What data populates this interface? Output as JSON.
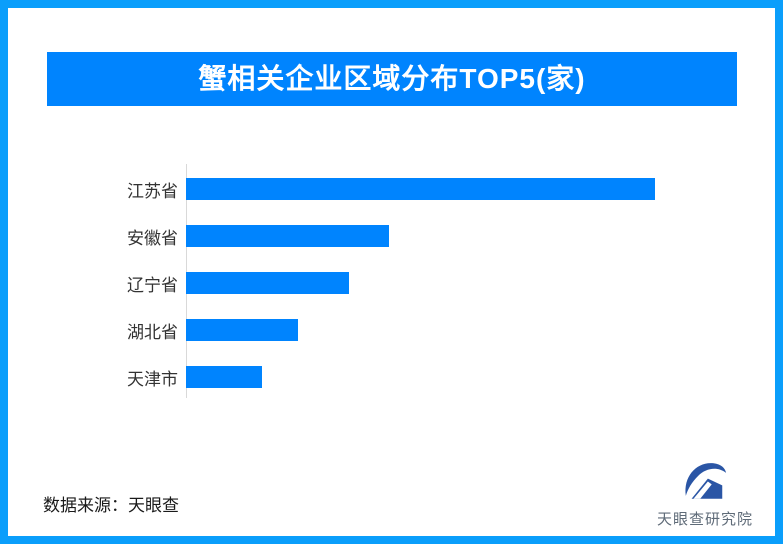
{
  "page": {
    "background": "#ffffff",
    "border_color": "#0a9efb"
  },
  "header": {
    "title": "蟹相关企业区域分布TOP5(家)",
    "background": "#0084fe",
    "text_color": "#ffffff"
  },
  "chart_data": {
    "type": "bar",
    "orientation": "horizontal",
    "title": "蟹相关企业区域分布TOP5(家)",
    "categories": [
      "江苏省",
      "安徽省",
      "辽宁省",
      "湖北省",
      "天津市"
    ],
    "values_relative_pct": [
      100,
      43.3,
      34.8,
      23.9,
      16.2
    ],
    "value_labels_shown": false,
    "xlabel": "",
    "ylabel": "",
    "legend": false,
    "gridlines": false,
    "bar_color": "#0084fe",
    "axis_color": "#d9d9d9",
    "label_color": "#333333"
  },
  "footer": {
    "source_text": "数据来源：天眼查",
    "logo_text": "天眼查研究院",
    "logo_color": "#2a55a5",
    "logo_text_color": "#5f6b78"
  }
}
